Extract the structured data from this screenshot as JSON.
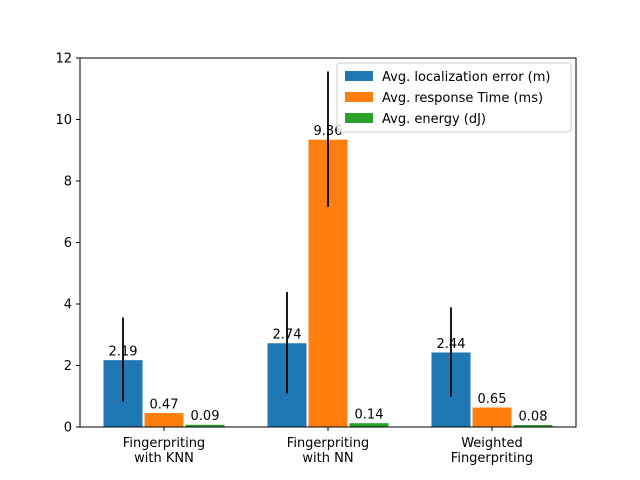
{
  "chart_data": {
    "type": "bar",
    "categories": [
      "Fingerpriting\nwith KNN",
      "Fingerpriting\nwith NN",
      "Weighted\nFingerpriting"
    ],
    "series": [
      {
        "name": "Avg. localization error (m)",
        "color": "#1f77b4",
        "values": [
          2.19,
          2.74,
          2.44
        ],
        "errors": [
          1.37,
          1.65,
          1.45
        ]
      },
      {
        "name": "Avg. response Time (ms)",
        "color": "#ff7f0e",
        "values": [
          0.47,
          9.36,
          0.65
        ],
        "errors": [
          0.0,
          2.2,
          0.0
        ]
      },
      {
        "name": "Avg. energy (dJ)",
        "color": "#2ca02c",
        "values": [
          0.09,
          0.14,
          0.08
        ],
        "errors": [
          0.0,
          0.0,
          0.0
        ]
      }
    ],
    "data_labels": [
      [
        "2.19",
        "0.47",
        "0.09"
      ],
      [
        "2.74",
        "9.36",
        "0.14"
      ],
      [
        "2.44",
        "0.65",
        "0.08"
      ]
    ],
    "ylim": [
      0,
      12
    ],
    "yticks": [
      0,
      2,
      4,
      6,
      8,
      10,
      12
    ],
    "ytick_labels": [
      "0",
      "2",
      "4",
      "6",
      "8",
      "10",
      "12"
    ],
    "title": "",
    "xlabel": "",
    "ylabel": "",
    "legend_position": "top-right",
    "grid": false
  }
}
